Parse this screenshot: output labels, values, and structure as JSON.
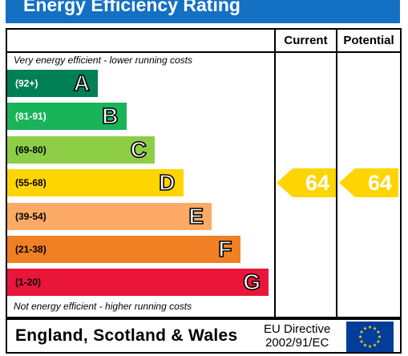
{
  "title": "Energy Efficiency Rating",
  "columns": {
    "current": "Current",
    "potential": "Potential"
  },
  "top_note": "Very energy efficient - lower running costs",
  "bottom_note": "Not energy efficient - higher running costs",
  "bands": [
    {
      "range": "(92+)",
      "letter": "A",
      "color": "#008054",
      "range_color": "#ffffff"
    },
    {
      "range": "(81-91)",
      "letter": "B",
      "color": "#19b459",
      "range_color": "#ffffff"
    },
    {
      "range": "(69-80)",
      "letter": "C",
      "color": "#8dce46",
      "range_color": "#000000"
    },
    {
      "range": "(55-68)",
      "letter": "D",
      "color": "#ffd500",
      "range_color": "#000000"
    },
    {
      "range": "(39-54)",
      "letter": "E",
      "color": "#fcaa65",
      "range_color": "#000000"
    },
    {
      "range": "(21-38)",
      "letter": "F",
      "color": "#ef8023",
      "range_color": "#000000"
    },
    {
      "range": "(1-20)",
      "letter": "G",
      "color": "#e9153b",
      "range_color": "#000000"
    }
  ],
  "current_rating": {
    "value": "64",
    "band": "D",
    "color": "#ffd500"
  },
  "potential_rating": {
    "value": "64",
    "band": "D",
    "color": "#ffd500"
  },
  "footer": {
    "region": "England, Scotland & Wales",
    "directive_line1": "EU Directive",
    "directive_line2": "2002/91/EC"
  },
  "eu_flag": {
    "icon": "eu-flag-icon",
    "background": "#033d9c",
    "stars": "#ffdd00"
  }
}
